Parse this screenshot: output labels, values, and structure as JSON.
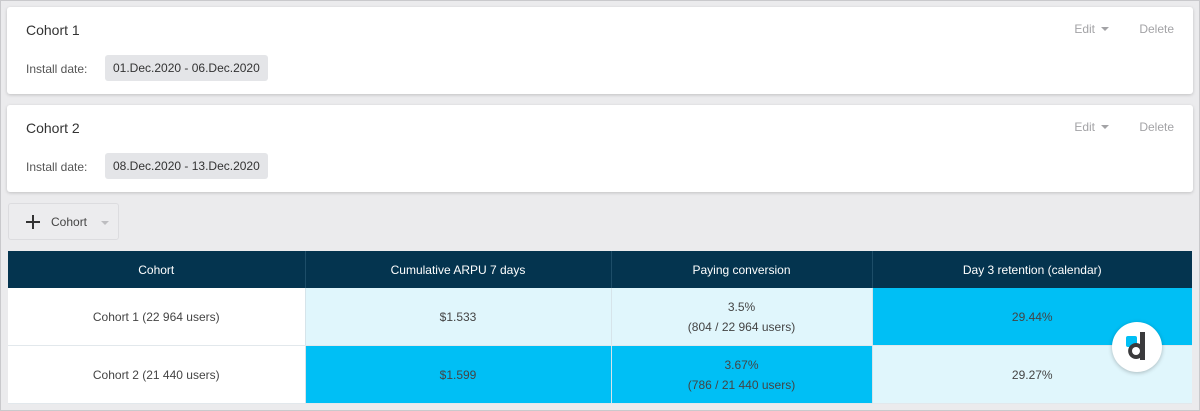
{
  "cohorts": [
    {
      "title": "Cohort 1",
      "install_label": "Install date:",
      "date_range": "01.Dec.2020 - 06.Dec.2020",
      "edit_label": "Edit",
      "delete_label": "Delete"
    },
    {
      "title": "Cohort 2",
      "install_label": "Install date:",
      "date_range": "08.Dec.2020 - 13.Dec.2020",
      "edit_label": "Edit",
      "delete_label": "Delete"
    }
  ],
  "add_cohort": {
    "label": "Cohort"
  },
  "table": {
    "headers": [
      "Cohort",
      "Cumulative ARPU 7 days",
      "Paying conversion",
      "Day 3 retention (calendar)"
    ],
    "rows": [
      {
        "cohort": "Cohort 1 (22 964 users)",
        "arpu": "$1.533",
        "conversion": "3.5%",
        "conversion_detail": "(804 / 22 964 users)",
        "retention": "29.44%"
      },
      {
        "cohort": "Cohort 2 (21 440 users)",
        "arpu": "$1.599",
        "conversion": "3.67%",
        "conversion_detail": "(786 / 21 440 users)",
        "retention": "29.27%"
      }
    ]
  },
  "colors": {
    "header_bg": "#04344f",
    "highlight": "#00bff5",
    "light_highlight": "#e0f6fc",
    "logo_blue": "#00bff5",
    "logo_dark": "#3a3a3c"
  },
  "logo": {
    "icon": "devtodev-logo-icon"
  }
}
